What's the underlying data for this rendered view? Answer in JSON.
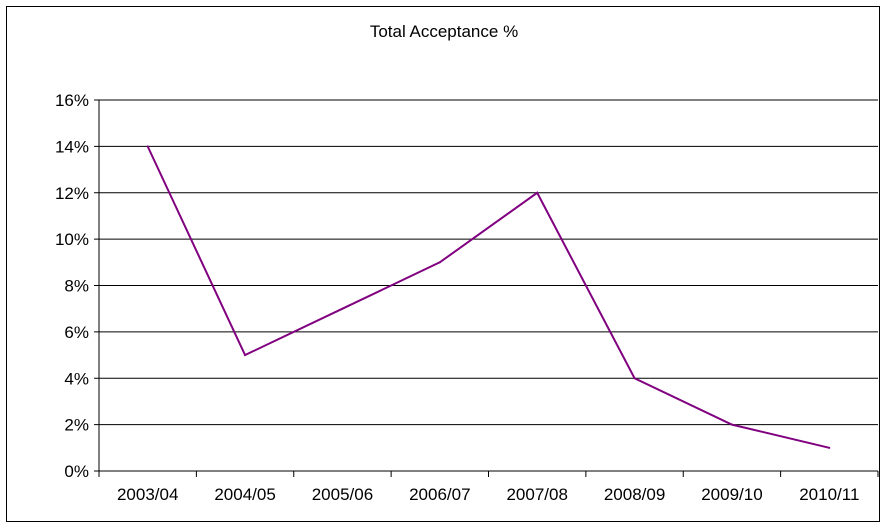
{
  "chart_data": {
    "type": "line",
    "title": "Total Acceptance %",
    "xlabel": "",
    "ylabel": "",
    "categories": [
      "2003/04",
      "2004/05",
      "2005/06",
      "2006/07",
      "2007/08",
      "2008/09",
      "2009/10",
      "2010/11"
    ],
    "series": [
      {
        "name": "",
        "values": [
          14,
          5,
          7,
          9,
          12,
          4,
          2,
          1
        ]
      }
    ],
    "ylim": [
      0,
      16
    ],
    "yticks": [
      0,
      2,
      4,
      6,
      8,
      10,
      12,
      14,
      16
    ],
    "ytick_labels": [
      "0%",
      "2%",
      "4%",
      "6%",
      "8%",
      "10%",
      "12%",
      "14%",
      "16%"
    ],
    "grid": true,
    "legend": "none",
    "line_color": "#800080"
  }
}
